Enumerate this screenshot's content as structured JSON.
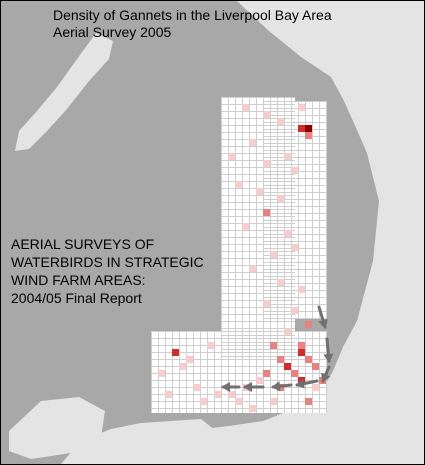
{
  "title": {
    "line1": "Density of Gannets in the Liverpool Bay Area",
    "line2": "Aerial Survey 2005"
  },
  "report": {
    "line1": "AERIAL SURVEYS OF",
    "line2": "WATERBIRDS IN STRATEGIC",
    "line3": "WIND FARM AREAS:",
    "line4": "2004/05 Final Report"
  },
  "colors": {
    "sea": "#a8a8a8",
    "land": "#e4e4e4",
    "grid_cell": "#ffffff",
    "grid_line": "#cfcfcf",
    "density_low": "#f6cccc",
    "density_medium": "#ea8080",
    "density_high": "#d42a2a",
    "density_max": "#8c0000",
    "arrow": "#707070"
  },
  "icons": {
    "movement": "arrow-icon"
  }
}
